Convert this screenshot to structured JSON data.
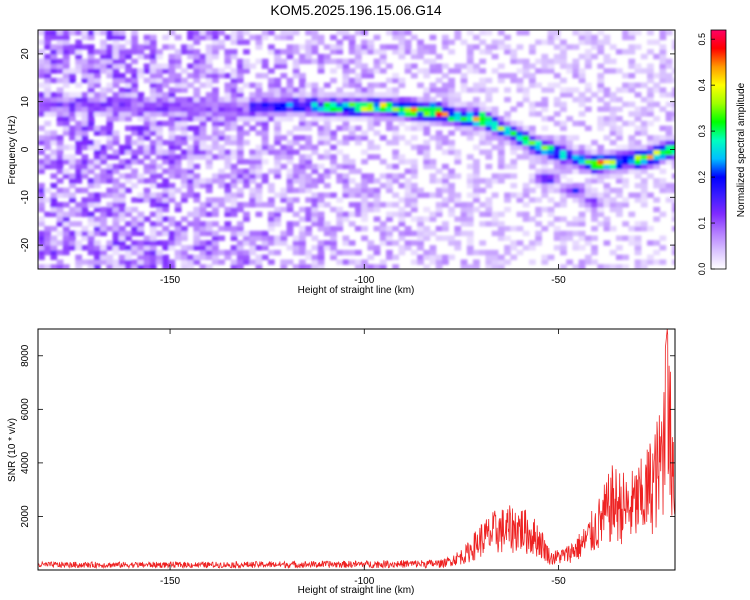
{
  "title": "KOM5.2025.196.15.06.G14",
  "chart_data": [
    {
      "type": "heatmap",
      "xlabel": "Height of straight line (km)",
      "ylabel": "Frequency (Hz)",
      "xlim": [
        -184,
        -20
      ],
      "ylim": [
        -25,
        25
      ],
      "x_ticks": [
        -150,
        -100,
        -50
      ],
      "x_tick_labels": [
        "-150",
        "-100",
        "-50"
      ],
      "y_ticks": [
        -20,
        -10,
        0,
        10,
        20
      ],
      "y_tick_labels": [
        "-20",
        "-10",
        "0",
        "10",
        "20"
      ],
      "colorbar": {
        "label": "Normalized spectral amplitude",
        "range": [
          0,
          0.52
        ],
        "ticks": [
          0.0,
          0.1,
          0.2,
          0.3,
          0.4,
          0.5
        ],
        "tick_labels": [
          "0.0",
          "0.1",
          "0.2",
          "0.3",
          "0.4",
          "0.5"
        ],
        "colormap": [
          "#ffffff",
          "#d9c2ff",
          "#b27bff",
          "#7f2bff",
          "#3b1cff",
          "#0000ff",
          "#00bfff",
          "#00ffbf",
          "#00ff00",
          "#9fff00",
          "#ffff00",
          "#ff9900",
          "#ff0000",
          "#ff0066"
        ]
      },
      "ridge": {
        "description_points": [
          {
            "x": -130,
            "y": 8.5,
            "amp": 0.2
          },
          {
            "x": -115,
            "y": 9.5,
            "amp": 0.22
          },
          {
            "x": -110,
            "y": 9,
            "amp": 0.32
          },
          {
            "x": -96,
            "y": 9,
            "amp": 0.4
          },
          {
            "x": -82,
            "y": 8,
            "amp": 0.48
          },
          {
            "x": -76,
            "y": 7,
            "amp": 0.28
          },
          {
            "x": -70,
            "y": 6.5,
            "amp": 0.45
          },
          {
            "x": -62,
            "y": 3.5,
            "amp": 0.3
          },
          {
            "x": -56,
            "y": 1,
            "amp": 0.35
          },
          {
            "x": -45,
            "y": -2,
            "amp": 0.22
          },
          {
            "x": -40,
            "y": -3,
            "amp": 0.45
          },
          {
            "x": -32,
            "y": -2,
            "amp": 0.3
          },
          {
            "x": -28,
            "y": -2,
            "amp": 0.45
          },
          {
            "x": -22,
            "y": 0,
            "amp": 0.35
          }
        ],
        "branch_points": [
          {
            "x": -54,
            "y": -6,
            "amp": 0.2
          },
          {
            "x": -47,
            "y": -8.5,
            "amp": 0.2
          },
          {
            "x": -42,
            "y": -11,
            "amp": 0.15
          }
        ]
      }
    },
    {
      "type": "line",
      "xlabel": "Height of straight line (km)",
      "ylabel": "SNR (10 * v/v)",
      "xlim": [
        -184,
        -20
      ],
      "ylim": [
        0,
        9000
      ],
      "x_ticks": [
        -150,
        -100,
        -50
      ],
      "x_tick_labels": [
        "-150",
        "-100",
        "-50"
      ],
      "y_ticks": [
        2000,
        4000,
        6000,
        8000
      ],
      "y_tick_labels": [
        "2000",
        "4000",
        "6000",
        "8000"
      ],
      "color": "#ee2222",
      "envelope": [
        {
          "x": -184,
          "y": 250
        },
        {
          "x": -140,
          "y": 250
        },
        {
          "x": -100,
          "y": 300
        },
        {
          "x": -80,
          "y": 350
        },
        {
          "x": -74,
          "y": 900
        },
        {
          "x": -70,
          "y": 1800
        },
        {
          "x": -66,
          "y": 2300
        },
        {
          "x": -60,
          "y": 2500
        },
        {
          "x": -55,
          "y": 1800
        },
        {
          "x": -52,
          "y": 700
        },
        {
          "x": -48,
          "y": 900
        },
        {
          "x": -44,
          "y": 1500
        },
        {
          "x": -40,
          "y": 2600
        },
        {
          "x": -36,
          "y": 4000
        },
        {
          "x": -32,
          "y": 3600
        },
        {
          "x": -28,
          "y": 4300
        },
        {
          "x": -24,
          "y": 6000
        },
        {
          "x": -22,
          "y": 9000
        },
        {
          "x": -20,
          "y": 5500
        }
      ]
    }
  ]
}
